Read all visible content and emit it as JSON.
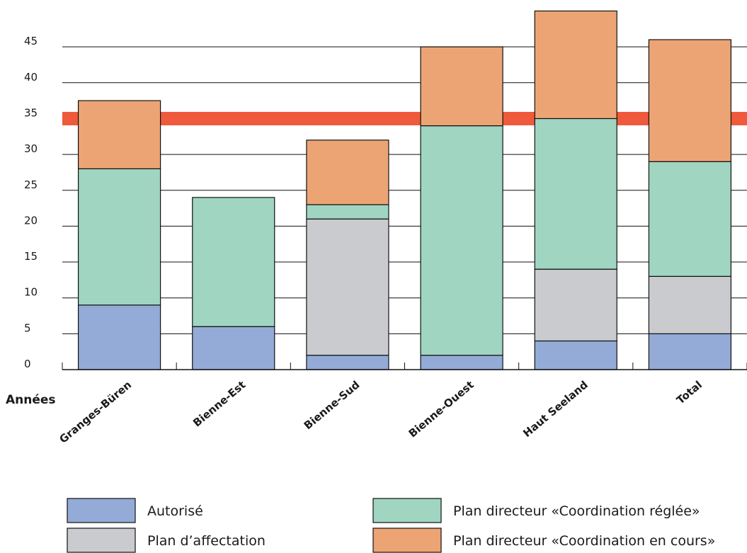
{
  "chart_data": {
    "type": "bar",
    "stacked": true,
    "categories": [
      "Granges-Büren",
      "Bienne-Est",
      "Bienne-Sud",
      "Bienne-Ouest",
      "Haut Seeland",
      "Total"
    ],
    "series": [
      {
        "name": "Autorisé",
        "color": "#93abd6",
        "values": [
          9,
          6,
          2,
          2,
          4,
          5
        ]
      },
      {
        "name": "Plan d’affectation",
        "color": "#c9cbcf",
        "values": [
          0,
          0,
          19,
          0,
          10,
          8
        ]
      },
      {
        "name": "Plan directeur «Coordination réglée»",
        "color": "#a0d5c1",
        "values": [
          19,
          18,
          2,
          32,
          21,
          16
        ]
      },
      {
        "name": "Plan directeur «Coordination en cours»",
        "color": "#eda474",
        "values": [
          9.5,
          0,
          9,
          11,
          15,
          17
        ]
      }
    ],
    "reference_line": {
      "value": 35,
      "color": "#ee5a3b"
    },
    "ylabel": "Années",
    "ylim": [
      0,
      50
    ],
    "yticks": [
      0,
      5,
      10,
      15,
      20,
      25,
      30,
      35,
      40,
      45
    ],
    "grid": true,
    "legend_position": "bottom"
  }
}
